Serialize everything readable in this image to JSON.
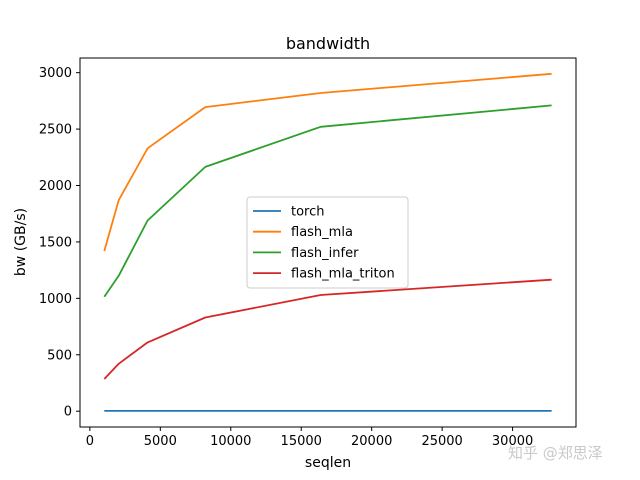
{
  "chart_data": {
    "type": "line",
    "title": "bandwidth",
    "xlabel": "seqlen",
    "ylabel": "bw (GB/s)",
    "xlim": [
      -700,
      34500
    ],
    "ylim": [
      -140,
      3130
    ],
    "xticks": [
      0,
      5000,
      10000,
      15000,
      20000,
      25000,
      30000
    ],
    "yticks": [
      0,
      500,
      1000,
      1500,
      2000,
      2500,
      3000
    ],
    "x": [
      1024,
      2048,
      4096,
      8192,
      16384,
      32768
    ],
    "series": [
      {
        "name": "torch",
        "color": "#1f77b4",
        "values": [
          3,
          3,
          3,
          3,
          3,
          3
        ]
      },
      {
        "name": "flash_mla",
        "color": "#ff7f0e",
        "values": [
          1420,
          1870,
          2330,
          2695,
          2820,
          2990
        ]
      },
      {
        "name": "flash_infer",
        "color": "#2ca02c",
        "values": [
          1015,
          1200,
          1690,
          2165,
          2520,
          2710
        ]
      },
      {
        "name": "flash_mla_triton",
        "color": "#d62728",
        "values": [
          285,
          420,
          610,
          830,
          1030,
          1165
        ]
      }
    ],
    "legend_position": "center",
    "grid": false
  },
  "watermark": "知乎 @郑思泽"
}
